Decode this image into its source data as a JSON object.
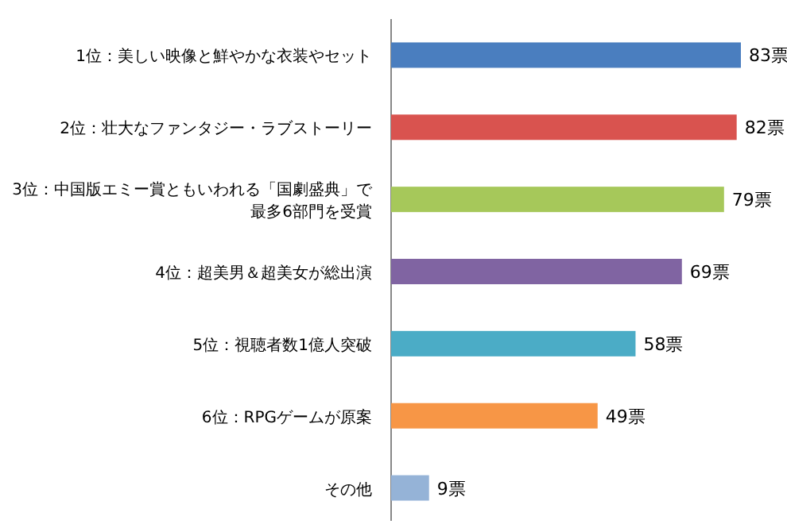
{
  "chart_data": {
    "type": "bar",
    "orientation": "horizontal",
    "categories": [
      "1位：美しい映像と鮮やかな衣装やセット",
      "2位：壮大なファンタジー・ラブストーリー",
      "3位：中国版エミー賞ともいわれる「国劇盛典」で最多6部門を受賞",
      "4位：超美男＆超美女が総出演",
      "5位：視聴者数1億人突破",
      "6位：RPGゲームが原案",
      "その他"
    ],
    "values": [
      83,
      82,
      79,
      69,
      58,
      49,
      9
    ],
    "colors": [
      "#4a7ebf",
      "#d9534f",
      "#a6c85a",
      "#8064a2",
      "#4bacc6",
      "#f79646",
      "#95b3d7"
    ],
    "value_labels": [
      "83票",
      "82票",
      "79票",
      "69票",
      "58票",
      "49票",
      "9票"
    ]
  }
}
